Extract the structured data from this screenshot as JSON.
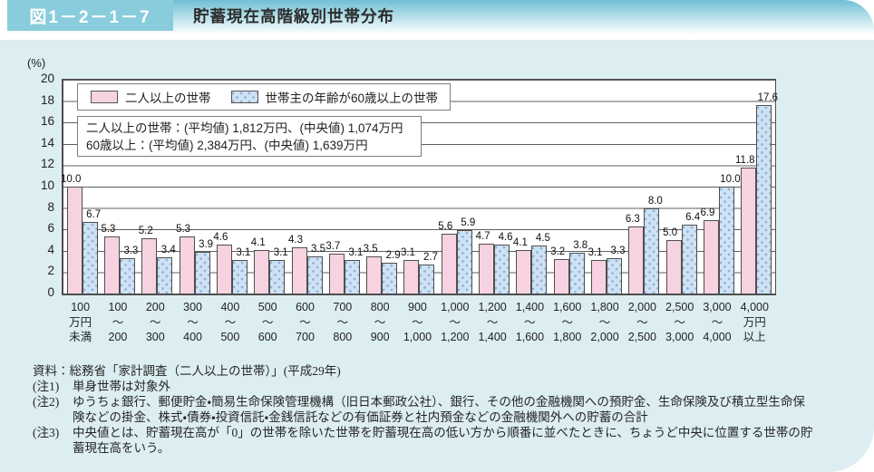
{
  "header": {
    "figure_label": "図1－2－1－7",
    "title": "貯蓄現在高階級別世帯分布"
  },
  "chart_data": {
    "type": "bar",
    "title": "貯蓄現在高階級別世帯分布",
    "unit": "(%)",
    "ylim": [
      0,
      20
    ],
    "yticks": [
      20,
      18,
      16,
      14,
      12,
      10,
      8,
      6,
      4,
      2,
      0
    ],
    "grid": true,
    "legend_position": "top-left",
    "categories": [
      "100\n万円\n未満",
      "100\n〜\n200",
      "200\n〜\n300",
      "300\n〜\n400",
      "400\n〜\n500",
      "500\n〜\n600",
      "600\n〜\n700",
      "700\n〜\n800",
      "800\n〜\n900",
      "900\n〜\n1,000",
      "1,000\n〜\n1,200",
      "1,200\n〜\n1,400",
      "1,400\n〜\n1,600",
      "1,600\n〜\n1,800",
      "1,800\n〜\n2,000",
      "2,000\n〜\n2,500",
      "2,500\n〜\n3,000",
      "3,000\n〜\n4,000",
      "4,000\n万円\n以上"
    ],
    "series": [
      {
        "name": "二人以上の世帯",
        "color": "#f7d3e1",
        "pattern": "solid",
        "values": [
          10.0,
          5.3,
          5.2,
          5.3,
          4.6,
          4.1,
          4.3,
          3.7,
          3.5,
          3.1,
          5.6,
          4.7,
          4.1,
          3.2,
          3.1,
          6.3,
          5.0,
          6.9,
          11.8
        ]
      },
      {
        "name": "世帯主の年齢が60歳以上の世帯",
        "color": "#cfe2f3",
        "pattern": "dots",
        "values": [
          6.7,
          3.3,
          3.4,
          3.9,
          3.1,
          3.1,
          3.5,
          3.1,
          2.9,
          2.7,
          5.9,
          4.6,
          4.5,
          3.8,
          3.3,
          8.0,
          6.4,
          10.0,
          17.6
        ]
      }
    ],
    "annotation": {
      "line1": "二人以上の世帯：(平均値) 1,812万円、(中央値) 1,074万円",
      "line2": "60歳以上：(平均値) 2,384万円、(中央値) 1,639万円"
    }
  },
  "footer": {
    "source": "資料：総務省「家計調査（二人以上の世帯）」(平成29年)",
    "notes": [
      {
        "label": "(注1)",
        "text": "単身世帯は対象外"
      },
      {
        "label": "(注2)",
        "text": "ゆうちょ銀行、郵便貯金・簡易生命保険管理機構（旧日本郵政公社）、銀行、その他の金融機関への預貯金、生命保険及び積立型生命保\n険などの掛金、株式・債券・投資信託・金銭信託などの有価証券と社内預金などの金融機関外への貯蓄の合計"
      },
      {
        "label": "(注3)",
        "text": "中央値とは、貯蓄現在高が「0」の世帯を除いた世帯を貯蓄現在高の低い方から順番に並べたときに、ちょうど中央に位置する世帯の貯\n蓄現在高をいう。"
      }
    ]
  },
  "colors": {
    "panel_bg": "#dceef2",
    "header_tag_bg": "#89cddc",
    "header_gradient_top": "#6fbfd3",
    "bar_border": "#4e4e4e",
    "dot_color": "#8fb2da",
    "gridline": "#5f5f5f"
  }
}
